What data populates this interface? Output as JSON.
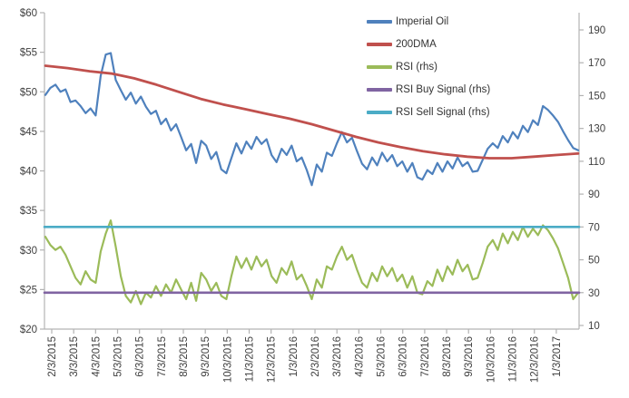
{
  "chart": {
    "background_color": "#ffffff",
    "axis_color": "#b3b3b3",
    "text_color": "#3f3f3f"
  },
  "chart_data": {
    "type": "line",
    "title": "",
    "xlabel": "",
    "ylabel_left": "",
    "ylabel_right": "",
    "grid": false,
    "legend_position": "top-center-right",
    "x_axis": {
      "labels": [
        "2/3/2015",
        "3/3/2015",
        "4/3/2015",
        "5/3/2015",
        "6/3/2015",
        "7/3/2015",
        "8/3/2015",
        "9/3/2015",
        "10/3/2015",
        "11/3/2015",
        "12/3/2015",
        "1/3/2016",
        "2/3/2016",
        "3/3/2016",
        "4/3/2016",
        "5/3/2016",
        "6/3/2016",
        "7/3/2016",
        "8/3/2016",
        "9/3/2016",
        "10/3/2016",
        "11/3/2016",
        "12/3/2016",
        "1/3/2017"
      ],
      "label_rotation_deg": 90
    },
    "y_axis_left": {
      "tick_labels": [
        "$60",
        "$55",
        "$50",
        "$45",
        "$40",
        "$35",
        "$30",
        "$25",
        "$20"
      ],
      "tick_values": [
        60,
        55,
        50,
        45,
        40,
        35,
        30,
        25,
        20
      ],
      "min": 20,
      "max": 60
    },
    "y_axis_right": {
      "tick_labels": [
        "190",
        "170",
        "150",
        "130",
        "110",
        "90",
        "70",
        "50",
        "30",
        "10"
      ],
      "tick_values": [
        190,
        170,
        150,
        130,
        110,
        90,
        70,
        50,
        30,
        10
      ],
      "min": 10,
      "max": 190
    },
    "series": [
      {
        "name": "Imperial Oil",
        "color": "#4F81BD",
        "axis": "left",
        "stroke_width": 2.2,
        "values": [
          49.6,
          50.5,
          50.9,
          50.0,
          50.3,
          48.7,
          48.9,
          48.2,
          47.3,
          47.9,
          47.0,
          52.0,
          54.7,
          54.9,
          51.5,
          50.2,
          49.0,
          49.9,
          48.5,
          49.4,
          48.1,
          47.2,
          47.6,
          45.9,
          46.6,
          45.1,
          45.9,
          44.3,
          42.6,
          43.4,
          41.0,
          43.8,
          43.2,
          41.5,
          42.4,
          40.2,
          39.7,
          41.6,
          43.5,
          42.2,
          43.7,
          42.8,
          44.3,
          43.4,
          44.0,
          42.0,
          41.1,
          42.8,
          42.0,
          43.2,
          41.2,
          41.7,
          40.1,
          38.2,
          40.8,
          39.9,
          42.3,
          41.9,
          43.5,
          44.9,
          43.6,
          44.2,
          42.5,
          40.9,
          40.2,
          41.7,
          40.7,
          42.3,
          41.2,
          42.0,
          40.6,
          41.2,
          39.9,
          41.0,
          39.2,
          38.9,
          40.1,
          39.6,
          41.0,
          39.9,
          41.2,
          40.3,
          41.7,
          40.6,
          41.1,
          39.9,
          40.0,
          41.4,
          42.8,
          43.5,
          42.9,
          44.4,
          43.6,
          44.9,
          44.1,
          45.7,
          44.9,
          46.4,
          45.8,
          48.2,
          47.7,
          47.0,
          46.2,
          45.0,
          43.9,
          42.9,
          42.6
        ]
      },
      {
        "name": "200DMA",
        "color": "#C0504D",
        "axis": "left",
        "stroke_width": 2.8,
        "values": [
          53.3,
          53.0,
          52.6,
          52.3,
          51.7,
          50.9,
          50.0,
          49.1,
          48.4,
          47.8,
          47.2,
          46.6,
          45.9,
          45.1,
          44.3,
          43.6,
          43.0,
          42.5,
          42.1,
          41.8,
          41.6,
          41.6,
          41.8,
          42.0,
          42.2
        ]
      },
      {
        "name": "RSI (rhs)",
        "color": "#9BBB59",
        "axis": "right",
        "stroke_width": 2.2,
        "values": [
          64,
          59,
          56,
          58,
          53,
          46,
          39,
          35,
          43,
          38,
          36,
          55,
          66,
          74,
          58,
          40,
          28,
          24,
          31,
          23,
          30,
          27,
          34,
          28,
          35,
          30,
          38,
          32,
          26,
          36,
          25,
          42,
          38,
          31,
          36,
          28,
          26,
          40,
          52,
          45,
          51,
          44,
          52,
          46,
          50,
          40,
          36,
          45,
          41,
          49,
          38,
          41,
          34,
          26,
          38,
          33,
          46,
          44,
          52,
          58,
          50,
          53,
          44,
          36,
          33,
          42,
          37,
          46,
          40,
          45,
          37,
          41,
          33,
          40,
          30,
          29,
          37,
          34,
          44,
          37,
          46,
          41,
          50,
          43,
          47,
          38,
          39,
          48,
          58,
          62,
          56,
          66,
          60,
          67,
          62,
          70,
          64,
          69,
          65,
          71,
          68,
          63,
          57,
          48,
          39,
          26,
          30
        ]
      },
      {
        "name": "RSI Buy Signal (rhs)",
        "color": "#8064A2",
        "axis": "right",
        "stroke_width": 2.6,
        "constant": 30
      },
      {
        "name": "RSI Sell Signal (rhs)",
        "color": "#4BACC6",
        "axis": "right",
        "stroke_width": 2.6,
        "constant": 70
      }
    ]
  }
}
